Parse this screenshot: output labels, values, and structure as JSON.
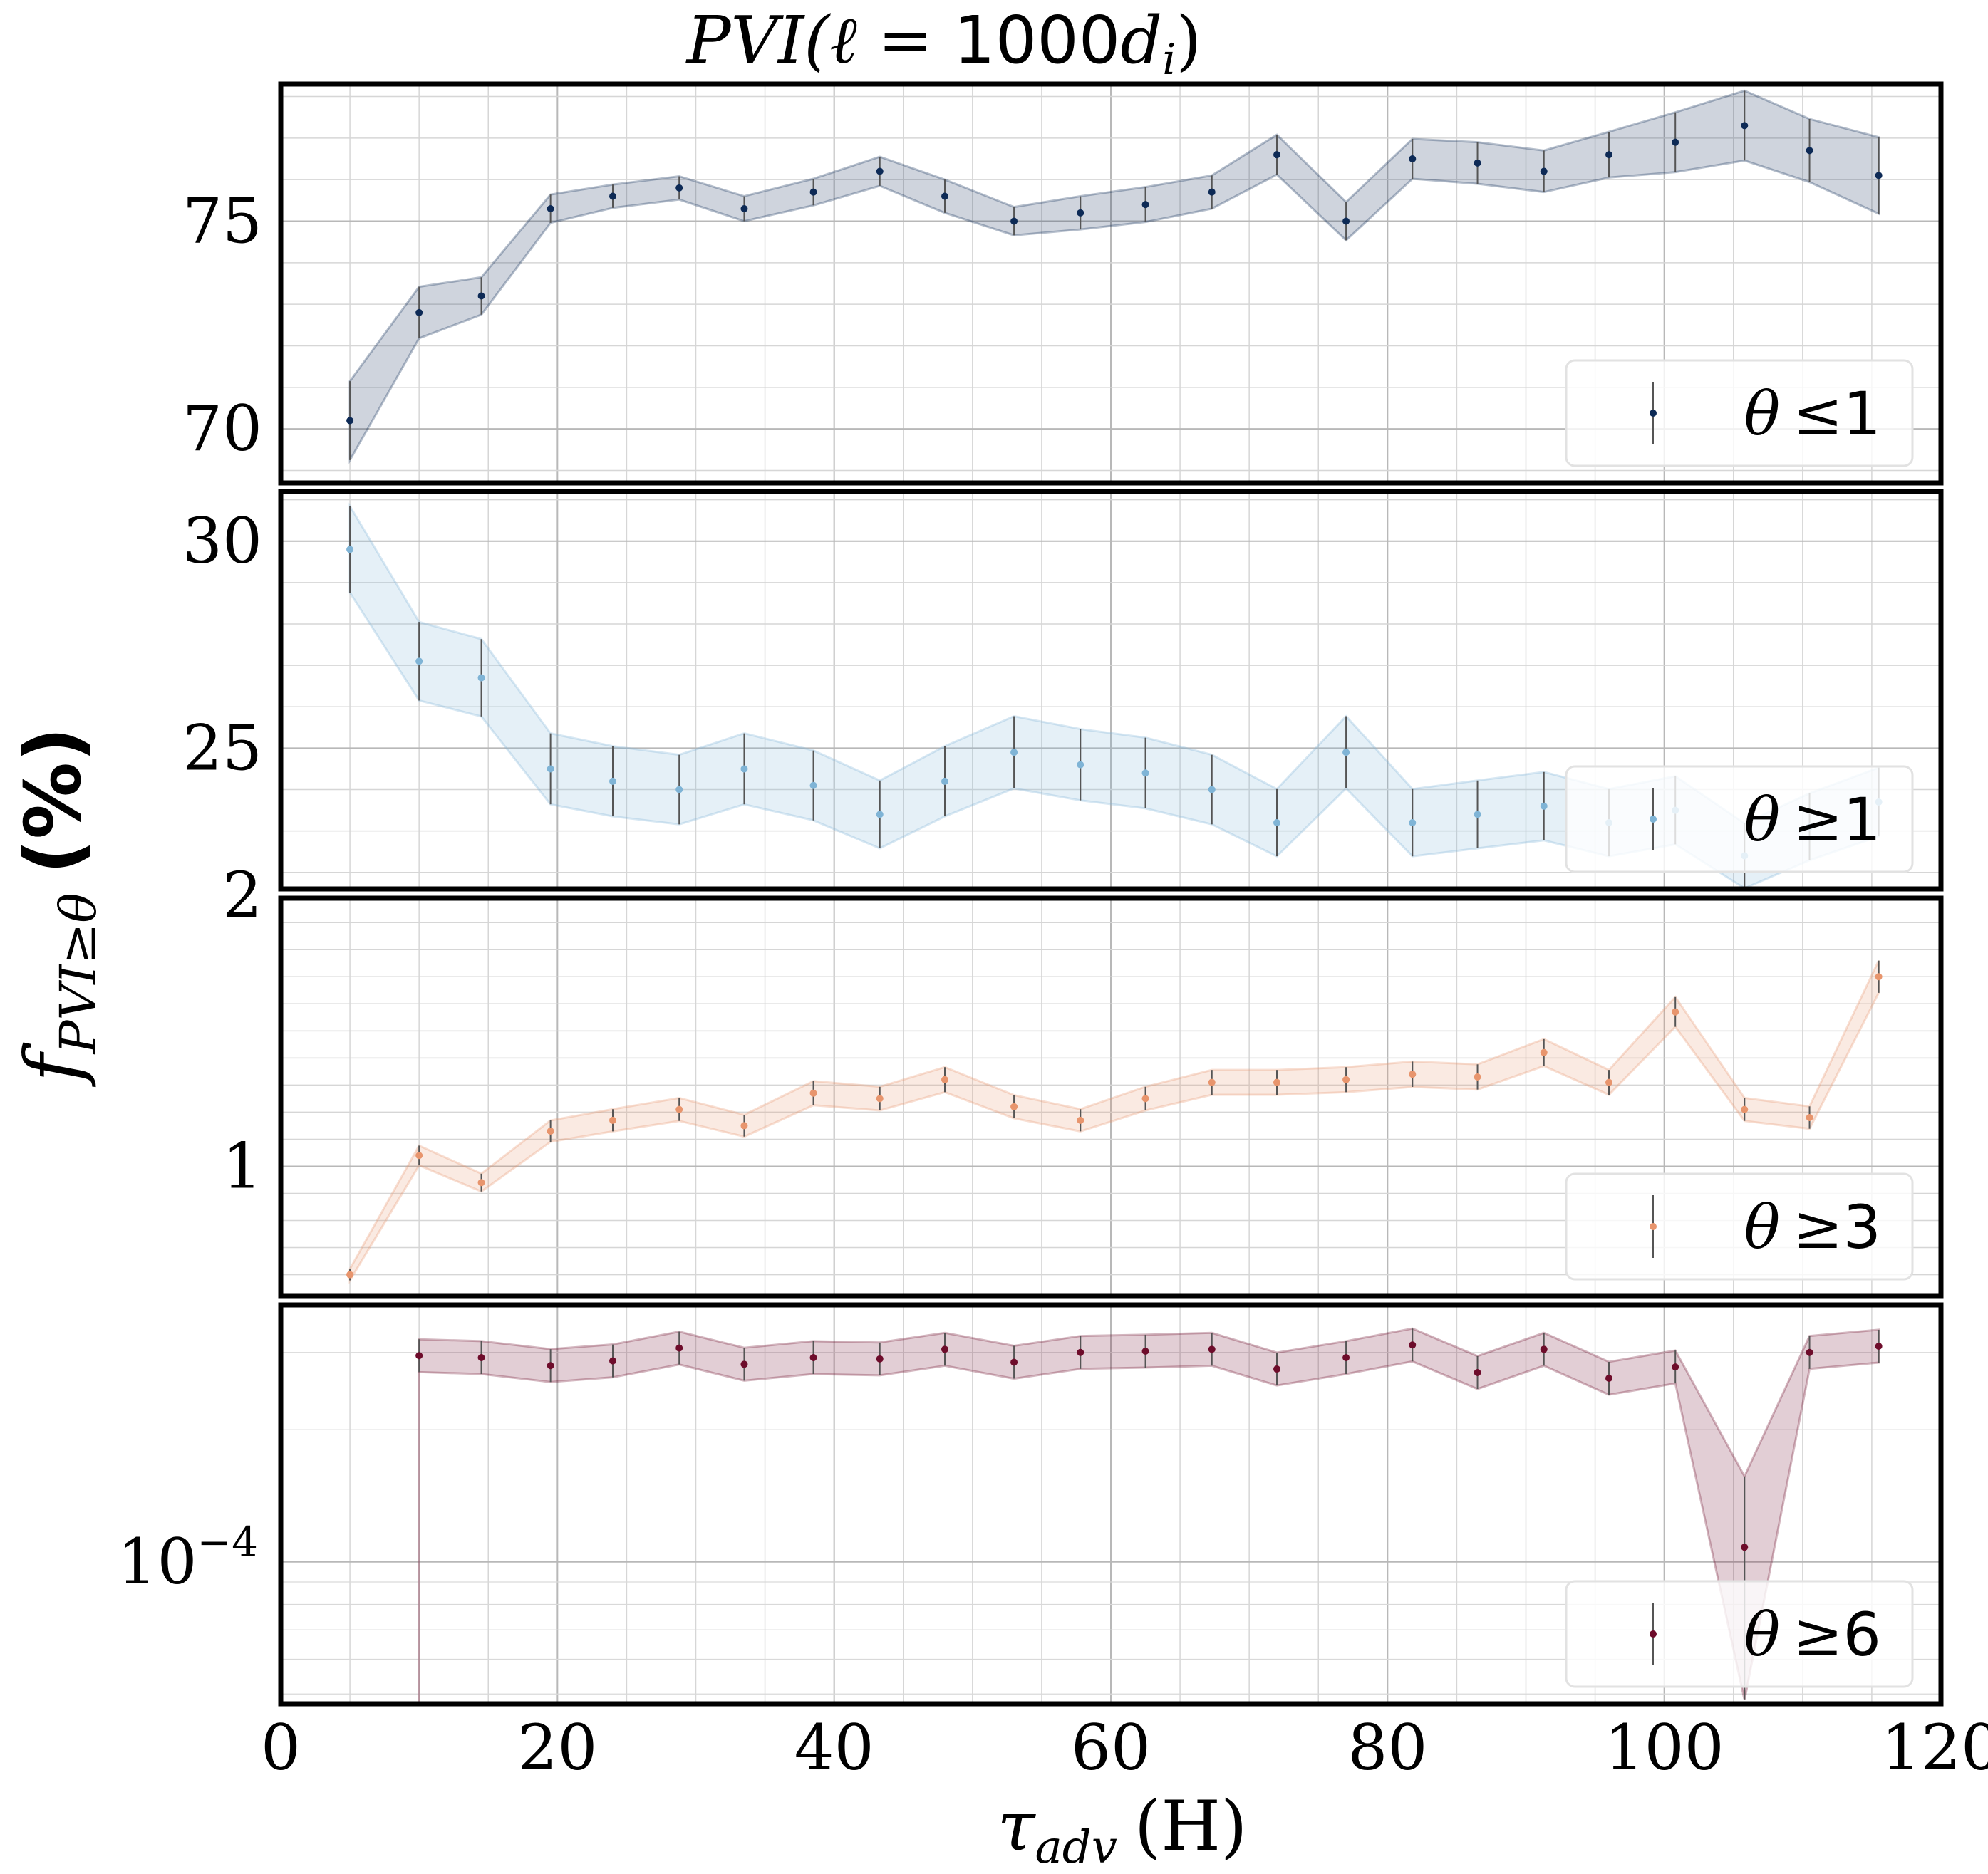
{
  "chart_data": {
    "type": "line",
    "title": "PVI(ℓ = 1000d_i)",
    "title_parts": {
      "func": "PVI(",
      "ell": "ℓ",
      "eq": " = ",
      "num": "1000",
      "d": "d",
      "sub": "i",
      "close": ")"
    },
    "xlabel": "τ_adv (H)",
    "xlabel_parts": {
      "tau": "τ",
      "sub": "adv",
      "unit": "(H)"
    },
    "ylabel": "f_{PVI≥θ} (%)",
    "ylabel_parts": {
      "f": "f",
      "sub": "PVI≥θ",
      "pct": "(%)"
    },
    "xlim": [
      0,
      120
    ],
    "xticks": [
      0,
      20,
      40,
      60,
      80,
      100,
      120
    ],
    "xtick_labels": [
      "0",
      "20",
      "40",
      "60",
      "80",
      "100",
      "120"
    ],
    "x": [
      5,
      10,
      14.5,
      19.5,
      24,
      28.8,
      33.5,
      38.5,
      43.3,
      48,
      53,
      57.8,
      62.5,
      67.3,
      72,
      77,
      81.8,
      86.5,
      91.3,
      96,
      100.8,
      105.8,
      110.5,
      115.5
    ],
    "grid": true,
    "legend_position": "bottom-right",
    "panels": [
      {
        "name": "theta-le-1",
        "legend": "θ ≤1",
        "legend_parts": {
          "sym": "θ",
          "op": "≤",
          "num": "1"
        },
        "color": "#0d2a56",
        "scale": "linear",
        "ylim": [
          68.7,
          78.3
        ],
        "yticks": [
          70,
          75
        ],
        "ytick_labels": [
          "70",
          "75"
        ],
        "values": [
          70.2,
          72.8,
          73.2,
          75.3,
          75.6,
          75.8,
          75.3,
          75.7,
          76.2,
          75.6,
          75.0,
          75.2,
          75.4,
          75.7,
          76.6,
          75.0,
          76.5,
          76.4,
          76.2,
          76.6,
          76.9,
          77.3,
          76.7,
          76.1
        ],
        "err": [
          0.95,
          0.62,
          0.45,
          0.34,
          0.28,
          0.28,
          0.3,
          0.32,
          0.35,
          0.4,
          0.34,
          0.4,
          0.42,
          0.4,
          0.48,
          0.46,
          0.48,
          0.5,
          0.5,
          0.55,
          0.72,
          0.84,
          0.76,
          0.92
        ]
      },
      {
        "name": "theta-ge-1",
        "legend": "θ ≥1",
        "legend_parts": {
          "sym": "θ",
          "op": "≥",
          "num": "1"
        },
        "color": "#7fb4d6",
        "scale": "linear",
        "ylim": [
          21.6,
          31.2
        ],
        "yticks": [
          25,
          30
        ],
        "ytick_labels": [
          "25",
          "30"
        ],
        "values": [
          29.8,
          27.1,
          26.7,
          24.5,
          24.2,
          24.0,
          24.5,
          24.1,
          23.4,
          24.2,
          24.9,
          24.6,
          24.4,
          24.0,
          23.2,
          24.9,
          23.2,
          23.4,
          23.6,
          23.2,
          23.5,
          22.4,
          23.1,
          23.7
        ]
      },
      {
        "name": "theta-ge-3",
        "legend": "θ ≥3",
        "legend_parts": {
          "sym": "θ",
          "op": "≥",
          "num": "3"
        },
        "color": "#e8956d",
        "scale": "linear",
        "ylim": [
          0.52,
          1.99
        ],
        "yticks": [
          1,
          2
        ],
        "ytick_labels": [
          "1",
          "2"
        ],
        "values": [
          0.6,
          1.04,
          0.94,
          1.13,
          1.17,
          1.21,
          1.15,
          1.27,
          1.25,
          1.32,
          1.22,
          1.17,
          1.25,
          1.31,
          1.31,
          1.32,
          1.34,
          1.33,
          1.42,
          1.31,
          1.57,
          1.21,
          1.18,
          1.7
        ]
      },
      {
        "name": "theta-ge-6",
        "legend": "θ ≥6",
        "legend_parts": {
          "sym": "θ",
          "op": "≥",
          "num": "6"
        },
        "color": "#6e0c2b",
        "scale": "log",
        "ylim": [
          4.75e-05,
          0.000385
        ],
        "yticks": [
          0.0001
        ],
        "ytick_labels": [
          "10",
          "−4"
        ],
        "values": [
          null,
          0.000295,
          0.000292,
          0.00028,
          0.000287,
          0.000307,
          0.000282,
          0.000292,
          0.00029,
          0.000305,
          0.000285,
          0.0003,
          0.000302,
          0.000305,
          0.000275,
          0.000292,
          0.000312,
          0.00027,
          0.000305,
          0.000262,
          0.000278,
          0.000108,
          0.0003,
          0.00031
        ]
      }
    ]
  }
}
